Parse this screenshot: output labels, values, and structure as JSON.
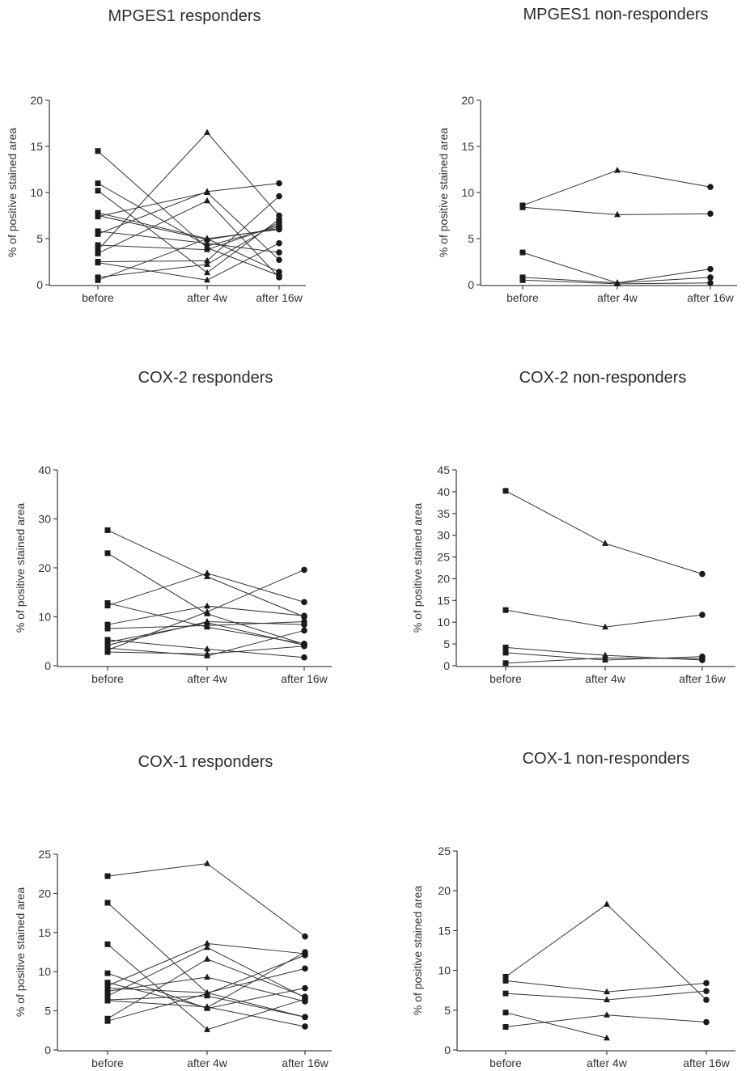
{
  "chart_data": [
    {
      "type": "line",
      "title": "MPGES1 responders",
      "ylabel": "% of positive stained area",
      "categories": [
        "before",
        "after 4w",
        "after 16w"
      ],
      "ylim": [
        0,
        20
      ],
      "yticks": [
        0,
        5,
        10,
        15,
        20
      ],
      "markers": [
        "square",
        "triangle",
        "circle"
      ],
      "series": [
        {
          "values": [
            14.5,
            4.0,
            1.0
          ]
        },
        {
          "values": [
            11.0,
            4.2,
            6.3
          ]
        },
        {
          "values": [
            10.2,
            1.3,
            7.1
          ]
        },
        {
          "values": [
            7.8,
            5.0,
            1.4
          ]
        },
        {
          "values": [
            7.5,
            4.9,
            6.1
          ]
        },
        {
          "values": [
            7.4,
            10.0,
            2.7
          ]
        },
        {
          "values": [
            5.8,
            4.5,
            3.5
          ]
        },
        {
          "values": [
            5.5,
            10.1,
            11.0
          ]
        },
        {
          "values": [
            4.3,
            3.8,
            6.5
          ]
        },
        {
          "values": [
            3.8,
            16.5,
            7.5
          ]
        },
        {
          "values": [
            3.4,
            9.1,
            0.8
          ]
        },
        {
          "values": [
            2.5,
            2.6,
            9.6
          ]
        },
        {
          "values": [
            2.4,
            0.5,
            4.5
          ]
        },
        {
          "values": [
            0.8,
            2.2,
            6.8
          ]
        },
        {
          "values": [
            0.5,
            5.0,
            6.0
          ]
        }
      ]
    },
    {
      "type": "line",
      "title": "MPGES1 non-responders",
      "ylabel": "% of positive stained area",
      "categories": [
        "before",
        "after 4w",
        "after 16w"
      ],
      "ylim": [
        0,
        20
      ],
      "yticks": [
        0,
        5,
        10,
        15,
        20
      ],
      "markers": [
        "square",
        "triangle",
        "circle"
      ],
      "series": [
        {
          "values": [
            8.6,
            12.4,
            10.6
          ]
        },
        {
          "values": [
            8.4,
            7.6,
            7.7
          ]
        },
        {
          "values": [
            3.5,
            0.2,
            1.7
          ]
        },
        {
          "values": [
            0.8,
            0.2,
            0.8
          ]
        },
        {
          "values": [
            0.5,
            0.1,
            0.2
          ]
        }
      ]
    },
    {
      "type": "line",
      "title": "COX-2 responders",
      "ylabel": "% of positive stained area",
      "categories": [
        "before",
        "after 4w",
        "after 16w"
      ],
      "ylim": [
        0,
        40
      ],
      "yticks": [
        0,
        10,
        20,
        30,
        40
      ],
      "markers": [
        "square",
        "triangle",
        "circle"
      ],
      "series": [
        {
          "values": [
            27.7,
            18.2,
            10.0
          ]
        },
        {
          "values": [
            23.0,
            10.6,
            4.4
          ]
        },
        {
          "values": [
            12.8,
            7.9,
            4.5
          ]
        },
        {
          "values": [
            12.3,
            18.9,
            13.0
          ]
        },
        {
          "values": [
            8.4,
            12.2,
            10.2
          ]
        },
        {
          "values": [
            7.6,
            8.2,
            9.0
          ]
        },
        {
          "values": [
            5.3,
            3.4,
            1.7
          ]
        },
        {
          "values": [
            4.8,
            8.8,
            4.2
          ]
        },
        {
          "values": [
            4.2,
            9.0,
            8.4
          ]
        },
        {
          "values": [
            3.6,
            2.0,
            7.2
          ]
        },
        {
          "values": [
            3.2,
            11.0,
            19.6
          ]
        },
        {
          "values": [
            2.8,
            2.4,
            4.0
          ]
        }
      ]
    },
    {
      "type": "line",
      "title": "COX-2 non-responders",
      "ylabel": "% of positive stained area",
      "categories": [
        "before",
        "after 4w",
        "after 16w"
      ],
      "ylim": [
        0,
        45
      ],
      "yticks": [
        0,
        5,
        10,
        15,
        20,
        25,
        30,
        35,
        40,
        45
      ],
      "markers": [
        "square",
        "triangle",
        "circle"
      ],
      "series": [
        {
          "values": [
            40.2,
            28.1,
            21.1
          ]
        },
        {
          "values": [
            12.8,
            8.9,
            11.7
          ]
        },
        {
          "values": [
            4.2,
            2.4,
            1.3
          ]
        },
        {
          "values": [
            3.0,
            1.3,
            2.1
          ]
        },
        {
          "values": [
            0.6,
            1.8,
            1.6
          ]
        }
      ]
    },
    {
      "type": "line",
      "title": "COX-1 responders",
      "ylabel": "% of positive stained area",
      "categories": [
        "before",
        "after 4w",
        "after 16w"
      ],
      "ylim": [
        0,
        25
      ],
      "yticks": [
        0,
        5,
        10,
        15,
        20,
        25
      ],
      "markers": [
        "square",
        "triangle",
        "circle"
      ],
      "series": [
        {
          "values": [
            22.2,
            23.8,
            14.5
          ]
        },
        {
          "values": [
            18.8,
            7.3,
            4.2
          ]
        },
        {
          "values": [
            13.5,
            2.6,
            6.5
          ]
        },
        {
          "values": [
            9.8,
            5.3,
            7.9
          ]
        },
        {
          "values": [
            8.6,
            5.4,
            12.5
          ]
        },
        {
          "values": [
            8.2,
            13.6,
            12.3
          ]
        },
        {
          "values": [
            7.9,
            7.3,
            10.4
          ]
        },
        {
          "values": [
            7.5,
            9.3,
            6.2
          ]
        },
        {
          "values": [
            6.9,
            13.1,
            6.7
          ]
        },
        {
          "values": [
            6.4,
            6.9,
            4.2
          ]
        },
        {
          "values": [
            6.3,
            5.5,
            3.0
          ]
        },
        {
          "values": [
            4.0,
            11.6,
            6.8
          ]
        },
        {
          "values": [
            3.7,
            7.2,
            12.1
          ]
        }
      ]
    },
    {
      "type": "line",
      "title": "COX-1 non-responders",
      "ylabel": "% of positive stained area",
      "categories": [
        "before",
        "after 4w",
        "after 16w"
      ],
      "ylim": [
        0,
        25
      ],
      "yticks": [
        0,
        5,
        10,
        15,
        20,
        25
      ],
      "markers": [
        "square",
        "triangle",
        "circle"
      ],
      "series": [
        {
          "values": [
            9.2,
            18.3,
            6.3
          ]
        },
        {
          "values": [
            8.7,
            7.3,
            8.4
          ]
        },
        {
          "values": [
            7.1,
            6.3,
            7.4
          ]
        },
        {
          "values": [
            4.7,
            1.5,
            null
          ]
        },
        {
          "values": [
            2.9,
            4.4,
            3.5
          ]
        }
      ]
    }
  ]
}
